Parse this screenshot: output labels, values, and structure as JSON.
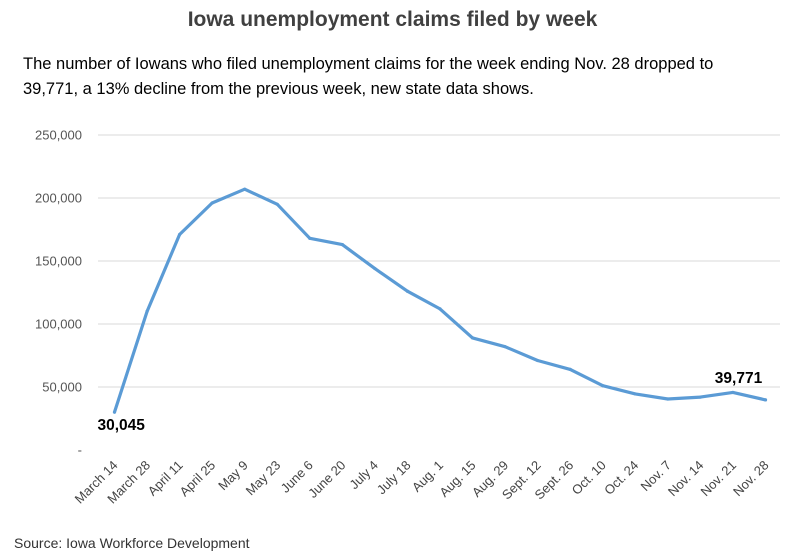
{
  "chart_data": {
    "type": "line",
    "title": "Iowa unemployment claims filed by week",
    "subtitle": "The number of Iowans who filed unemployment claims for the week ending Nov. 28 dropped to 39,771, a 13% decline from the previous week, new state data shows.",
    "source": "Source: Iowa Workforce Development",
    "categories": [
      "March 14",
      "March 28",
      "April 11",
      "April 25",
      "May 9",
      "May 23",
      "June 6",
      "June 20",
      "July 4",
      "July 18",
      "Aug. 1",
      "Aug. 15",
      "Aug. 29",
      "Sept. 12",
      "Sept. 26",
      "Oct. 10",
      "Oct. 24",
      "Nov. 7",
      "Nov. 14",
      "Nov. 21",
      "Nov. 28"
    ],
    "series": [
      {
        "values": [
          30045,
          110000,
          171000,
          196000,
          207000,
          195000,
          168000,
          163000,
          144000,
          126000,
          112000,
          89000,
          82000,
          71000,
          64000,
          51000,
          44500,
          40500,
          42000,
          45700,
          39771
        ]
      }
    ],
    "data_labels": [
      {
        "index": 0,
        "text": "30,045"
      },
      {
        "index": 20,
        "text": "39,771"
      }
    ],
    "y_ticks": [
      "-",
      "50,000",
      "100,000",
      "150,000",
      "200,000",
      "250,000"
    ],
    "ylim": [
      0,
      250000
    ],
    "grid": true,
    "colors": {
      "line": "#5b9bd5",
      "grid": "#d9d9d9"
    }
  }
}
